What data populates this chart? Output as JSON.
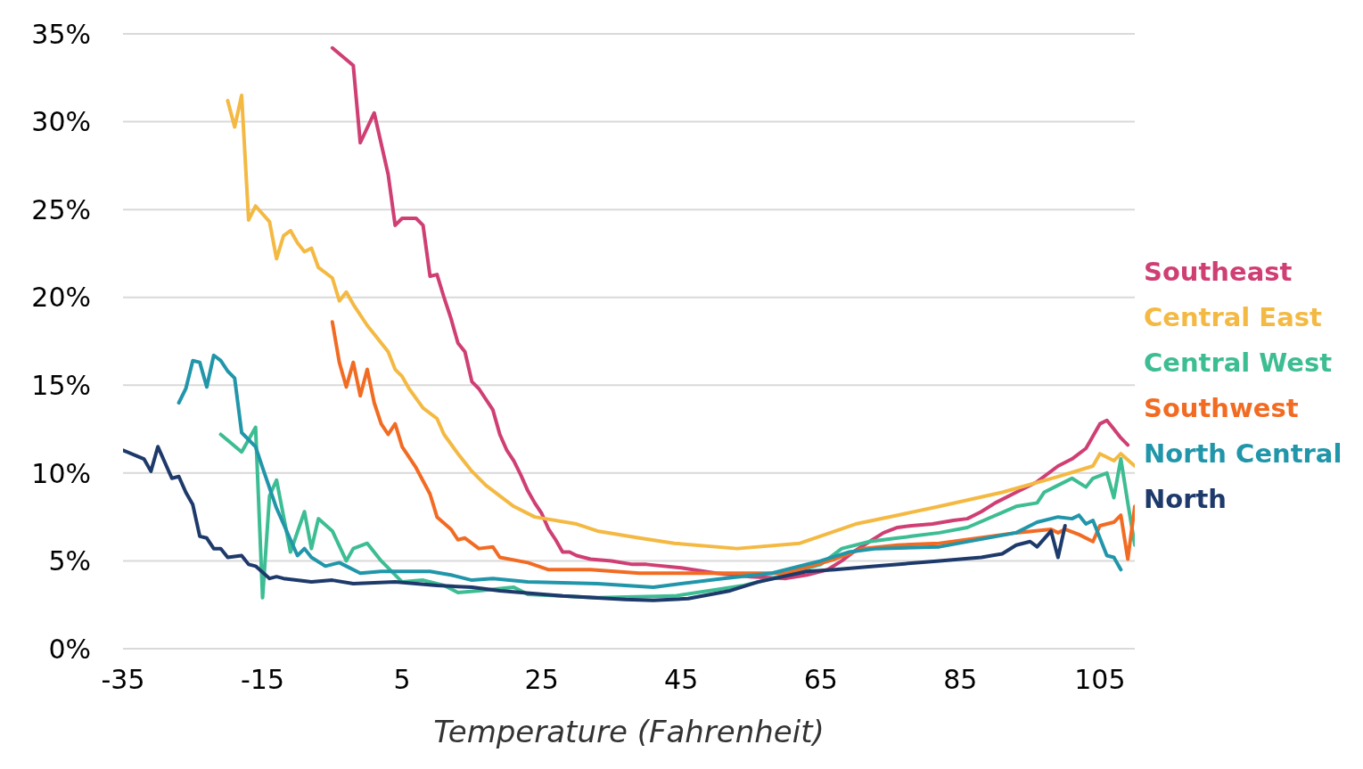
{
  "chart_data": {
    "type": "line",
    "xlabel": "Temperature (Fahrenheit)",
    "xlim": [
      -35,
      110
    ],
    "xticks": [
      -35,
      -15,
      5,
      25,
      45,
      65,
      85,
      105
    ],
    "ylim": [
      0,
      35
    ],
    "yticks": [
      {
        "value": 0,
        "label": "0%"
      },
      {
        "value": 5,
        "label": "5%"
      },
      {
        "value": 10,
        "label": "10%"
      },
      {
        "value": 15,
        "label": "15%"
      },
      {
        "value": 20,
        "label": "20%"
      },
      {
        "value": 25,
        "label": "25%"
      },
      {
        "value": 30,
        "label": "30%"
      },
      {
        "value": 35,
        "label": "35%"
      }
    ],
    "grid": "y",
    "legend": "right",
    "series": [
      {
        "name": "Southeast",
        "color": "#cf3f74",
        "x": [
          -5,
          -2,
          -1,
          1,
          3,
          4,
          5,
          7,
          8,
          9,
          10,
          11,
          12,
          13,
          14,
          15,
          16,
          18,
          19,
          20,
          21,
          22,
          23,
          24,
          25,
          26,
          27,
          28,
          29,
          30,
          32,
          35,
          38,
          40,
          45,
          50,
          55,
          60,
          63,
          66,
          68,
          70,
          72,
          74,
          76,
          78,
          81,
          84,
          86,
          88,
          90,
          93,
          96,
          99,
          101,
          103,
          104,
          105,
          106,
          107,
          108,
          109
        ],
        "values": [
          34.2,
          33.2,
          28.8,
          30.5,
          27,
          24.1,
          24.5,
          24.5,
          24.1,
          21.2,
          21.3,
          20,
          18.8,
          17.4,
          16.9,
          15.2,
          14.8,
          13.6,
          12.2,
          11.3,
          10.7,
          9.9,
          9,
          8.3,
          7.7,
          6.8,
          6.2,
          5.5,
          5.5,
          5.3,
          5.1,
          5.0,
          4.8,
          4.8,
          4.6,
          4.3,
          4.1,
          4.0,
          4.2,
          4.5,
          5.0,
          5.6,
          6.1,
          6.6,
          6.9,
          7.0,
          7.1,
          7.3,
          7.4,
          7.8,
          8.3,
          8.9,
          9.5,
          10.4,
          10.8,
          11.4,
          12.1,
          12.8,
          13.0,
          12.5,
          12.0,
          11.6
        ]
      },
      {
        "name": "Central East",
        "color": "#f4b942",
        "x": [
          -20,
          -19,
          -18,
          -17,
          -16,
          -14,
          -13,
          -12,
          -11,
          -10,
          -9,
          -8,
          -7,
          -5,
          -4,
          -3,
          -2,
          0,
          1,
          3,
          4,
          5,
          6,
          8,
          10,
          11,
          13,
          15,
          17,
          21,
          24,
          30,
          33,
          39,
          44,
          53,
          62,
          70,
          76,
          82,
          91,
          99,
          104,
          105,
          107,
          108,
          110
        ],
        "values": [
          31.2,
          29.7,
          31.5,
          24.4,
          25.2,
          24.3,
          22.2,
          23.5,
          23.8,
          23.1,
          22.6,
          22.8,
          21.7,
          21.1,
          19.8,
          20.3,
          19.6,
          18.4,
          17.9,
          16.9,
          15.9,
          15.5,
          14.8,
          13.7,
          13.1,
          12.2,
          11.1,
          10.1,
          9.3,
          8.1,
          7.5,
          7.1,
          6.7,
          6.3,
          6.0,
          5.7,
          6.0,
          7.1,
          7.6,
          8.1,
          8.9,
          9.8,
          10.4,
          11.1,
          10.7,
          11.1,
          10.4
        ]
      },
      {
        "name": "Central West",
        "color": "#3dbd93",
        "x": [
          -21,
          -18,
          -16,
          -15,
          -14,
          -13,
          -11,
          -9,
          -8,
          -7,
          -5,
          -3,
          -2,
          0,
          2,
          5,
          8,
          11,
          13,
          16,
          21,
          23,
          33,
          44,
          54,
          58,
          65,
          68,
          72,
          76,
          78,
          82,
          86,
          93,
          96,
          97,
          99,
          101,
          103,
          104,
          106,
          107,
          108,
          109,
          110
        ],
        "values": [
          12.2,
          11.2,
          12.6,
          2.9,
          8.7,
          9.6,
          5.5,
          7.8,
          5.7,
          7.4,
          6.7,
          5.0,
          5.7,
          6.0,
          5.0,
          3.8,
          3.9,
          3.6,
          3.2,
          3.3,
          3.5,
          3.1,
          2.9,
          3.0,
          3.6,
          4.0,
          4.8,
          5.7,
          6.1,
          6.3,
          6.4,
          6.6,
          6.9,
          8.1,
          8.3,
          8.9,
          9.3,
          9.7,
          9.2,
          9.7,
          10.0,
          8.6,
          10.8,
          8.3,
          5.9
        ]
      },
      {
        "name": "Southwest",
        "color": "#f26b23",
        "x": [
          -5,
          -4,
          -3,
          -2,
          -1,
          0,
          1,
          2,
          3,
          4,
          5,
          7,
          9,
          10,
          12,
          13,
          14,
          16,
          18,
          19,
          23,
          26,
          32,
          39,
          44,
          54,
          60,
          67,
          71,
          76,
          82,
          93,
          98,
          99,
          100,
          102,
          104,
          105,
          107,
          108,
          109,
          110
        ],
        "values": [
          18.6,
          16.3,
          14.9,
          16.3,
          14.4,
          15.9,
          14.0,
          12.8,
          12.2,
          12.8,
          11.5,
          10.3,
          8.8,
          7.5,
          6.8,
          6.2,
          6.3,
          5.7,
          5.8,
          5.2,
          4.9,
          4.5,
          4.5,
          4.3,
          4.3,
          4.3,
          4.3,
          5.1,
          5.7,
          5.9,
          6.0,
          6.6,
          6.8,
          6.6,
          6.8,
          6.5,
          6.1,
          7.0,
          7.2,
          7.6,
          5.1,
          8.1
        ]
      },
      {
        "name": "North Central",
        "color": "#2196aa",
        "x": [
          -27,
          -26,
          -25,
          -24,
          -23,
          -22,
          -21,
          -20,
          -19,
          -18,
          -16,
          -15,
          -13,
          -12,
          -10,
          -9,
          -8,
          -6,
          -4,
          -3,
          -1,
          2,
          6,
          9,
          12,
          15,
          18,
          23,
          33,
          41,
          51,
          58,
          65,
          69,
          73,
          82,
          93,
          96,
          99,
          101,
          102,
          103,
          104,
          106,
          107,
          108
        ],
        "values": [
          14.0,
          14.8,
          16.4,
          16.3,
          14.9,
          16.7,
          16.4,
          15.8,
          15.4,
          12.3,
          11.5,
          10.3,
          8.0,
          7.1,
          5.3,
          5.7,
          5.2,
          4.7,
          4.9,
          4.7,
          4.3,
          4.4,
          4.4,
          4.4,
          4.2,
          3.9,
          4.0,
          3.8,
          3.7,
          3.5,
          4.0,
          4.3,
          5.0,
          5.5,
          5.7,
          5.8,
          6.6,
          7.2,
          7.5,
          7.4,
          7.6,
          7.1,
          7.3,
          5.3,
          5.2,
          4.5
        ]
      },
      {
        "name": "North",
        "color": "#1e3a6b",
        "x": [
          -35,
          -32,
          -31,
          -30,
          -28,
          -27,
          -26,
          -25,
          -24,
          -23,
          -22,
          -21,
          -20,
          -18,
          -17,
          -16,
          -14,
          -13,
          -12,
          -8,
          -5,
          -2,
          4,
          10,
          15,
          19,
          28,
          37,
          41,
          46,
          52,
          56,
          63,
          67,
          73,
          82,
          88,
          91,
          93,
          95,
          96,
          98,
          99,
          100
        ],
        "values": [
          11.3,
          10.8,
          10.1,
          11.5,
          9.7,
          9.8,
          8.9,
          8.2,
          6.4,
          6.3,
          5.7,
          5.7,
          5.2,
          5.3,
          4.8,
          4.7,
          4.0,
          4.1,
          4.0,
          3.8,
          3.9,
          3.7,
          3.8,
          3.6,
          3.5,
          3.3,
          3.0,
          2.8,
          2.75,
          2.85,
          3.3,
          3.8,
          4.4,
          4.5,
          4.7,
          5.0,
          5.2,
          5.4,
          5.9,
          6.1,
          5.8,
          6.7,
          5.2,
          7.0
        ]
      }
    ]
  }
}
